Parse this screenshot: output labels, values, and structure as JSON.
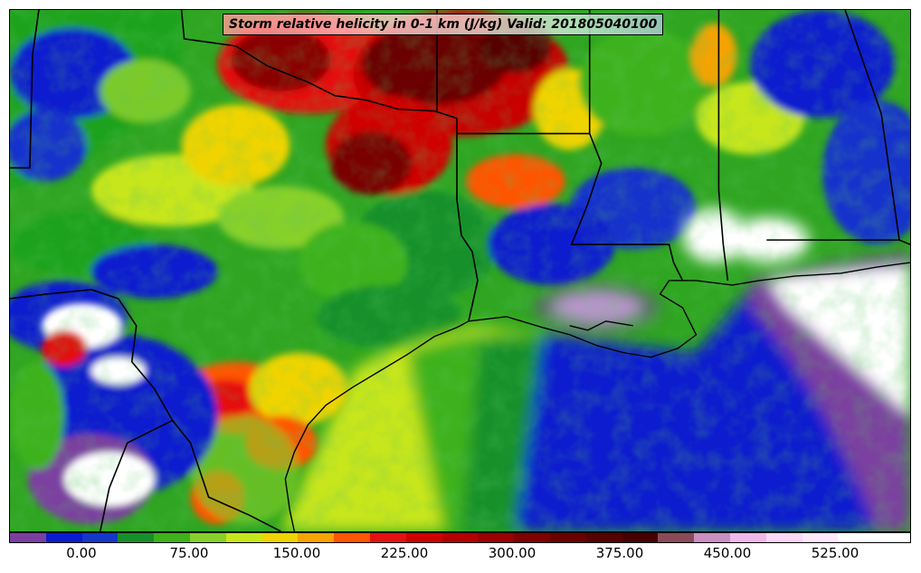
{
  "title": "Storm relative helicity in 0-1 km (J/kg) Valid: 201805040100",
  "colorbar": {
    "colors": [
      "#7b3fa0",
      "#0a1ccf",
      "#1438c8",
      "#16902a",
      "#3db21a",
      "#88d02a",
      "#c8e61c",
      "#f0d400",
      "#f7a300",
      "#ff5500",
      "#e51010",
      "#d00000",
      "#b50000",
      "#9a0000",
      "#800000",
      "#6a0000",
      "#560000",
      "#470000",
      "#8a4a5a",
      "#c88fc0",
      "#f0b8e8",
      "#fbd8f6",
      "#ffe8fb",
      "#ffffff",
      "#ffffff"
    ],
    "tick_labels": [
      "0.00",
      "75.00",
      "150.00",
      "225.00",
      "300.00",
      "375.00",
      "450.00",
      "525.00"
    ]
  }
}
